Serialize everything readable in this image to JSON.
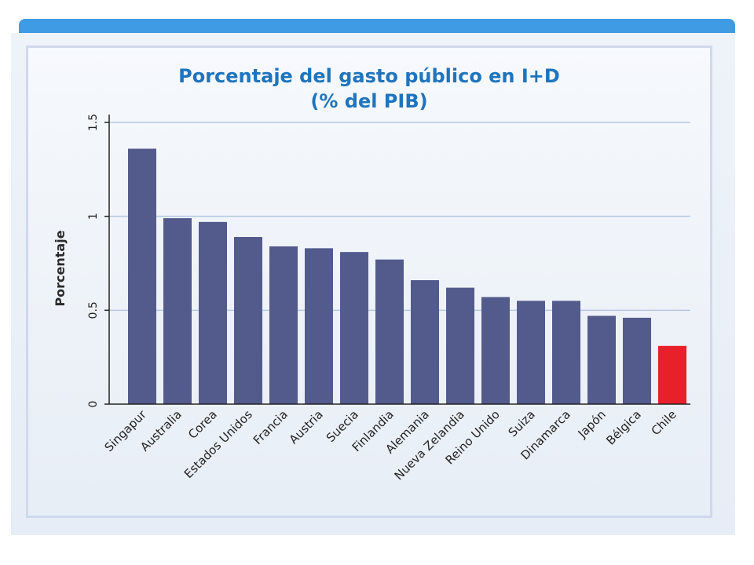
{
  "chart_data": {
    "type": "bar",
    "title": "Porcentaje del gasto público en I+D",
    "subtitle": "(% del PIB)",
    "xlabel": "",
    "ylabel": "Porcentaje",
    "ylim": [
      0,
      1.5
    ],
    "yticks": [
      0,
      0.5,
      1,
      1.5
    ],
    "ytick_labels": [
      "0",
      "0.5",
      "1",
      "1.5"
    ],
    "grid": true,
    "categories": [
      "Singapur",
      "Australia",
      "Corea",
      "Estados Unidos",
      "Francia",
      "Austria",
      "Suecia",
      "Finlandia",
      "Alemania",
      "Nueva Zelandia",
      "Reino Unido",
      "Suiza",
      "Dinamarca",
      "Japón",
      "Bélgica",
      "Chile"
    ],
    "values": [
      1.36,
      0.99,
      0.97,
      0.89,
      0.84,
      0.83,
      0.81,
      0.77,
      0.66,
      0.62,
      0.57,
      0.55,
      0.55,
      0.47,
      0.46,
      0.31
    ],
    "colors": {
      "bar": "#525b8b",
      "highlight": "#e8202a",
      "highlight_category": "Chile",
      "grid": "#b4c8e0",
      "axis": "#222222",
      "title": "#1f74bd"
    }
  }
}
